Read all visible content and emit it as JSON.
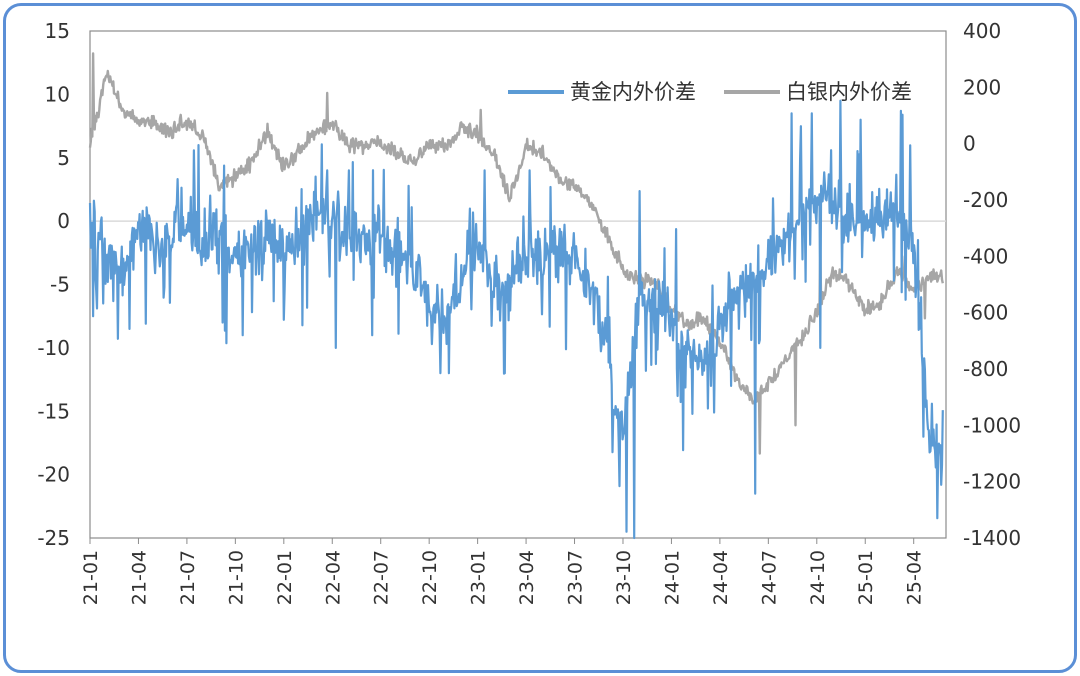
{
  "colors": {
    "gold": "#5b9bd5",
    "silver": "#a6a6a6",
    "frame": "#5b8fd6",
    "zero_line": "#d9d9d9"
  },
  "chart_data": {
    "type": "line",
    "title": "",
    "legend_position": "top-right",
    "grid": false,
    "y_left": {
      "lim": [
        -25,
        15
      ],
      "ticks": [
        "15",
        "10",
        "5",
        "0",
        "-5",
        "-10",
        "-15",
        "-20",
        "-25"
      ]
    },
    "y_right": {
      "lim": [
        -1400,
        400
      ],
      "ticks": [
        "400",
        "200",
        "0",
        "-200",
        "-400",
        "-600",
        "-800",
        "-1000",
        "-1200",
        "-1400"
      ]
    },
    "x_ticks": [
      "21-01",
      "21-04",
      "21-07",
      "21-10",
      "22-01",
      "22-04",
      "22-07",
      "22-10",
      "23-01",
      "23-04",
      "23-07",
      "23-10",
      "24-01",
      "24-04",
      "24-07",
      "24-10",
      "25-01",
      "25-04"
    ],
    "x_range": [
      "2021-01",
      "2025-05"
    ],
    "series": [
      {
        "name": "黄金内外价差",
        "axis": "left",
        "color": "#5b9bd5",
        "anchors": [
          [
            "2021-01",
            0
          ],
          [
            "2021-02",
            -2
          ],
          [
            "2021-03",
            -4
          ],
          [
            "2021-04",
            -1
          ],
          [
            "2021-05",
            -2
          ],
          [
            "2021-06",
            -1
          ],
          [
            "2021-07",
            0
          ],
          [
            "2021-08",
            -2
          ],
          [
            "2021-09",
            -1
          ],
          [
            "2021-10",
            -3
          ],
          [
            "2021-11",
            -2
          ],
          [
            "2021-12",
            -1
          ],
          [
            "2022-01",
            -2
          ],
          [
            "2022-02",
            -1
          ],
          [
            "2022-03",
            1
          ],
          [
            "2022-04",
            0
          ],
          [
            "2022-05",
            -1
          ],
          [
            "2022-06",
            -1
          ],
          [
            "2022-07",
            -2
          ],
          [
            "2022-08",
            -2
          ],
          [
            "2022-09",
            -4
          ],
          [
            "2022-10",
            -6
          ],
          [
            "2022-11",
            -8
          ],
          [
            "2022-12",
            -4
          ],
          [
            "2023-01",
            -2
          ],
          [
            "2023-02",
            -5
          ],
          [
            "2023-03",
            -5
          ],
          [
            "2023-04",
            -2
          ],
          [
            "2023-05",
            -3
          ],
          [
            "2023-06",
            -2
          ],
          [
            "2023-07",
            -3
          ],
          [
            "2023-08",
            -5
          ],
          [
            "2023-09",
            -10
          ],
          [
            "2023-10",
            -17
          ],
          [
            "2023-11",
            -6
          ],
          [
            "2023-12",
            -7
          ],
          [
            "2024-01",
            -8
          ],
          [
            "2024-02",
            -10
          ],
          [
            "2024-03",
            -11
          ],
          [
            "2024-04",
            -8
          ],
          [
            "2024-05",
            -6
          ],
          [
            "2024-06",
            -5
          ],
          [
            "2024-07",
            -3
          ],
          [
            "2024-08",
            -1
          ],
          [
            "2024-09",
            0
          ],
          [
            "2024-10",
            2
          ],
          [
            "2024-11",
            2
          ],
          [
            "2024-12",
            0
          ],
          [
            "2025-01",
            -1
          ],
          [
            "2025-02",
            0
          ],
          [
            "2025-03",
            1
          ],
          [
            "2025-04",
            -2
          ],
          [
            "2025-05",
            -18
          ]
        ],
        "spikes": [
          [
            "2021-01",
            -7.5
          ],
          [
            "2021-03",
            -8.5
          ],
          [
            "2021-07",
            6
          ],
          [
            "2021-09",
            -8
          ],
          [
            "2021-10",
            -9
          ],
          [
            "2022-03",
            4
          ],
          [
            "2022-04",
            -10
          ],
          [
            "2022-06",
            -9
          ],
          [
            "2022-10",
            -12
          ],
          [
            "2022-11",
            -12
          ],
          [
            "2023-01",
            4
          ],
          [
            "2023-02",
            -12
          ],
          [
            "2023-04",
            4
          ],
          [
            "2023-09",
            -15
          ],
          [
            "2023-10",
            -25
          ],
          [
            "2023-10",
            -24.5
          ],
          [
            "2024-03",
            -13
          ],
          [
            "2024-04",
            -13
          ],
          [
            "2024-06",
            -21.5
          ],
          [
            "2024-08",
            8.5
          ],
          [
            "2024-09",
            8.5
          ],
          [
            "2024-10",
            -10
          ],
          [
            "2024-11",
            9.5
          ],
          [
            "2024-12",
            8
          ],
          [
            "2025-03",
            8.7
          ],
          [
            "2025-04",
            -6
          ],
          [
            "2025-05",
            -20.8
          ]
        ]
      },
      {
        "name": "白银内外价差",
        "axis": "right",
        "color": "#a6a6a6",
        "anchors": [
          [
            "2021-01",
            0
          ],
          [
            "2021-02",
            250
          ],
          [
            "2021-03",
            120
          ],
          [
            "2021-04",
            80
          ],
          [
            "2021-05",
            70
          ],
          [
            "2021-06",
            40
          ],
          [
            "2021-07",
            80
          ],
          [
            "2021-08",
            20
          ],
          [
            "2021-09",
            -150
          ],
          [
            "2021-10",
            -120
          ],
          [
            "2021-11",
            -60
          ],
          [
            "2021-12",
            40
          ],
          [
            "2022-01",
            -80
          ],
          [
            "2022-02",
            -20
          ],
          [
            "2022-03",
            40
          ],
          [
            "2022-04",
            80
          ],
          [
            "2022-05",
            0
          ],
          [
            "2022-06",
            0
          ],
          [
            "2022-07",
            0
          ],
          [
            "2022-08",
            -30
          ],
          [
            "2022-09",
            -60
          ],
          [
            "2022-10",
            0
          ],
          [
            "2022-11",
            -20
          ],
          [
            "2022-12",
            60
          ],
          [
            "2023-01",
            30
          ],
          [
            "2023-02",
            -40
          ],
          [
            "2023-03",
            -200
          ],
          [
            "2023-04",
            -10
          ],
          [
            "2023-05",
            -30
          ],
          [
            "2023-06",
            -120
          ],
          [
            "2023-07",
            -150
          ],
          [
            "2023-08",
            -200
          ],
          [
            "2023-09",
            -330
          ],
          [
            "2023-10",
            -450
          ],
          [
            "2023-11",
            -480
          ],
          [
            "2023-12",
            -500
          ],
          [
            "2024-01",
            -580
          ],
          [
            "2024-02",
            -640
          ],
          [
            "2024-03",
            -620
          ],
          [
            "2024-04",
            -700
          ],
          [
            "2024-05",
            -830
          ],
          [
            "2024-06",
            -920
          ],
          [
            "2024-07",
            -850
          ],
          [
            "2024-08",
            -780
          ],
          [
            "2024-09",
            -700
          ],
          [
            "2024-10",
            -600
          ],
          [
            "2024-11",
            -450
          ],
          [
            "2024-12",
            -500
          ],
          [
            "2025-01",
            -600
          ],
          [
            "2025-02",
            -560
          ],
          [
            "2025-03",
            -450
          ],
          [
            "2025-04",
            -520
          ],
          [
            "2025-05",
            -470
          ]
        ],
        "spikes": [
          [
            "2021-01",
            320
          ],
          [
            "2021-07",
            60
          ],
          [
            "2022-03",
            180
          ],
          [
            "2023-01",
            120
          ],
          [
            "2024-06",
            -1100
          ],
          [
            "2024-08",
            -1000
          ],
          [
            "2024-10",
            -380
          ],
          [
            "2025-03",
            -400
          ],
          [
            "2025-04",
            -620
          ]
        ]
      }
    ]
  }
}
